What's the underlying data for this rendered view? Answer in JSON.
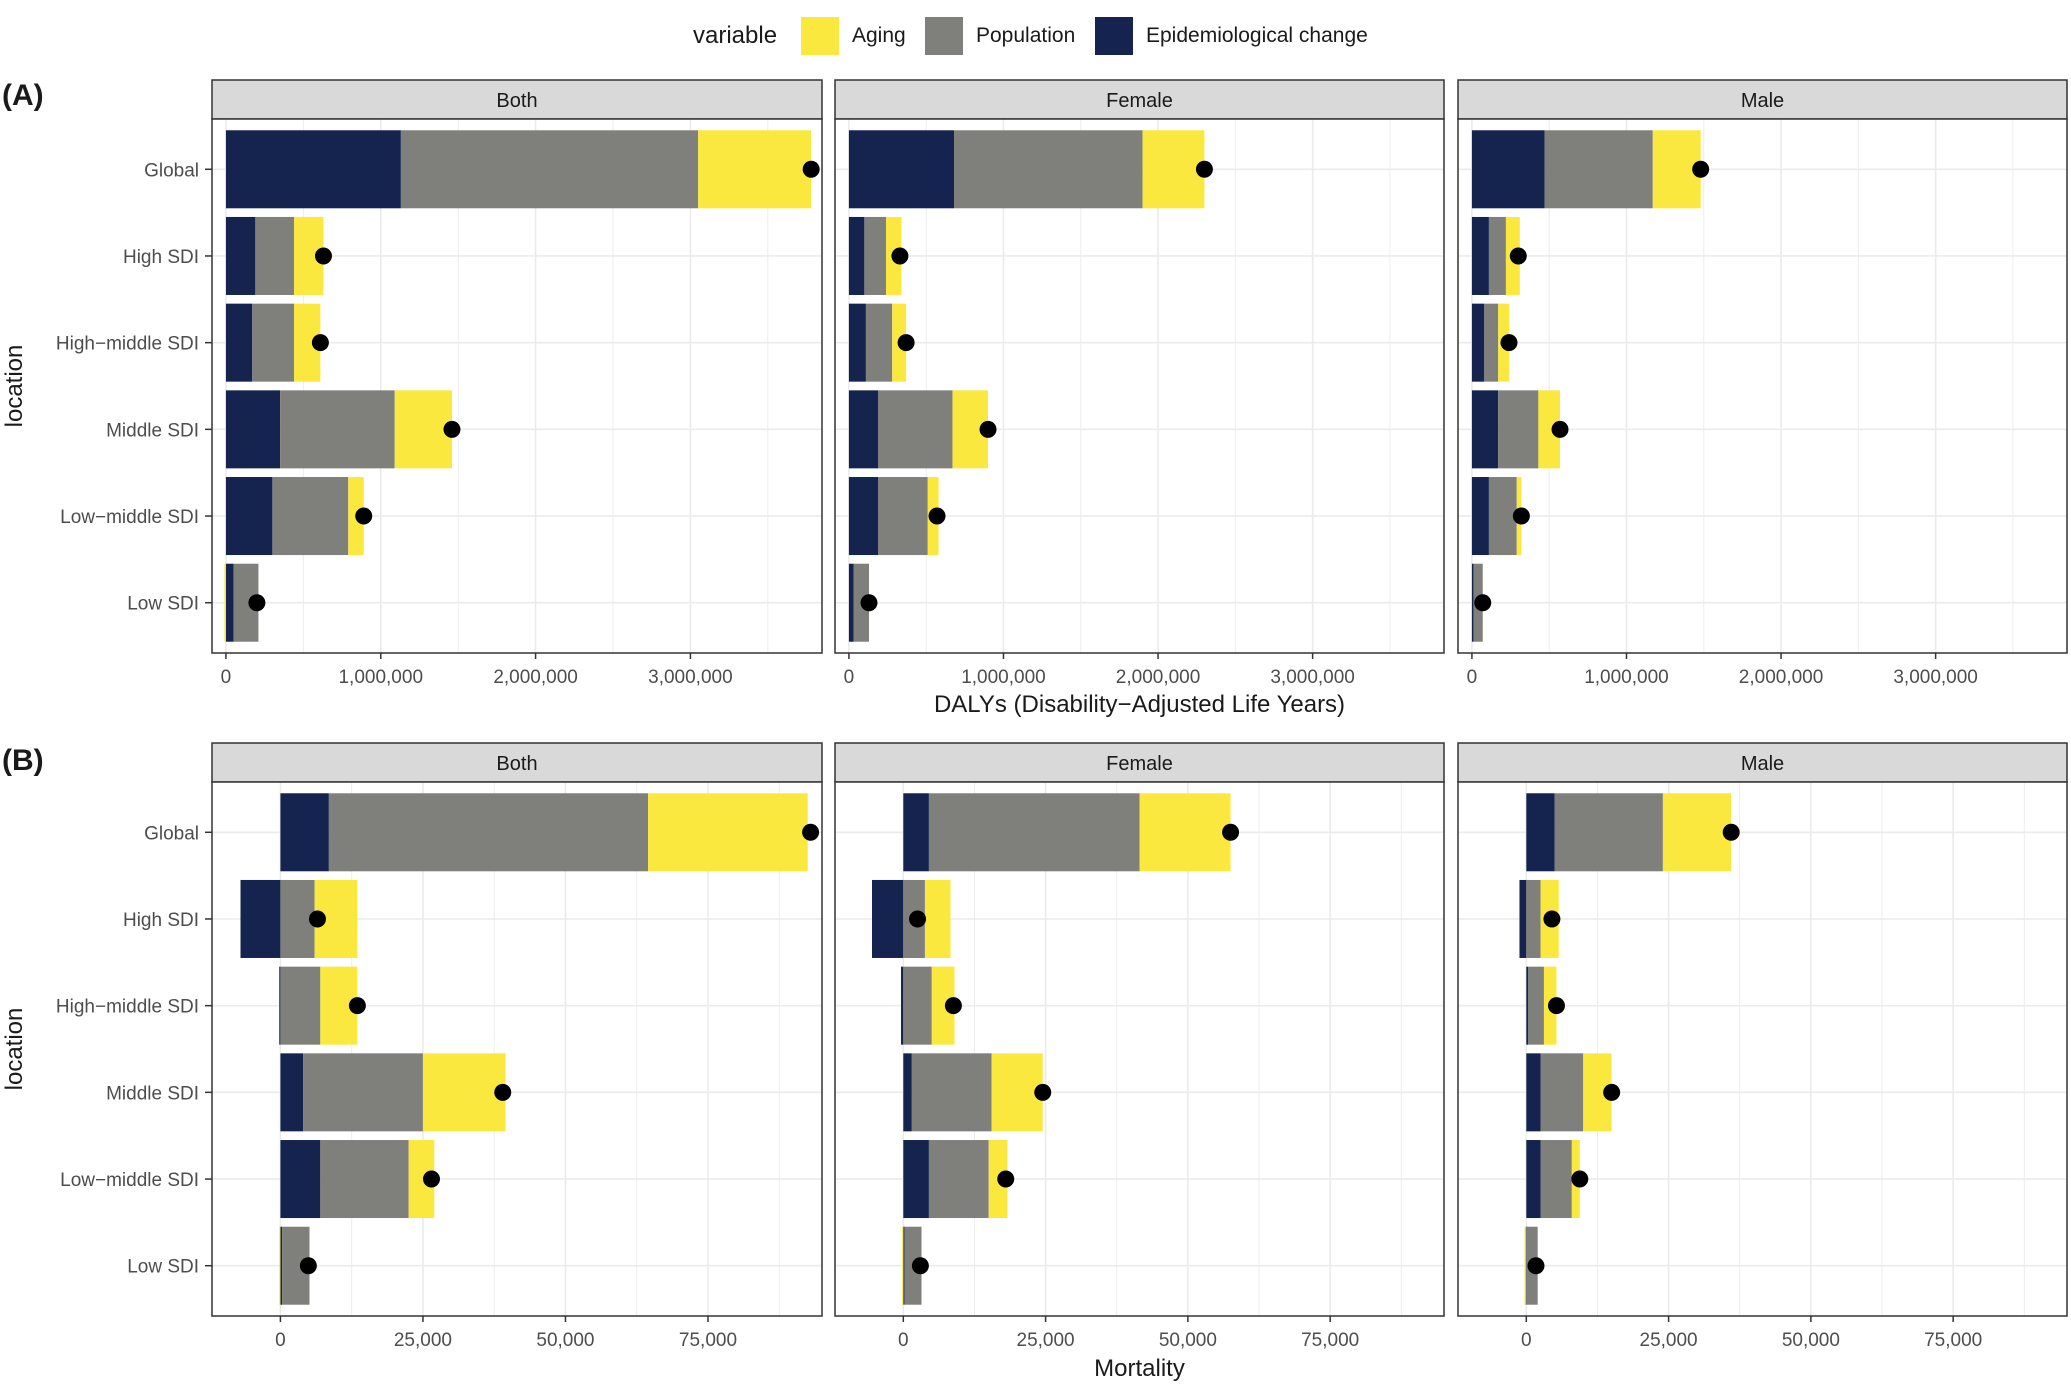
{
  "legend": {
    "title": "variable",
    "items": [
      {
        "label": "Aging",
        "color": "#FBE83F"
      },
      {
        "label": "Population",
        "color": "#7F7F7B"
      },
      {
        "label": "Epidemiological change",
        "color": "#15244F"
      }
    ]
  },
  "panels": [
    {
      "tag": "(A)",
      "xlabel": "DALYs (Disability−Adjusted Life Years)",
      "ylabel": "location"
    },
    {
      "tag": "(B)",
      "xlabel": "Mortality",
      "ylabel": "location"
    }
  ],
  "chart_data": [
    {
      "type": "bar",
      "stacked": true,
      "orientation": "horizontal",
      "title": "(A)",
      "xlabel": "DALYs (Disability−Adjusted Life Years)",
      "ylabel": "location",
      "facets": [
        "Both",
        "Female",
        "Male"
      ],
      "categories": [
        "Global",
        "High SDI",
        "High−middle SDI",
        "Middle SDI",
        "Low−middle SDI",
        "Low SDI"
      ],
      "xlim": [
        -90000,
        3850000
      ],
      "xticks": [
        0,
        1000000,
        2000000,
        3000000
      ],
      "xtick_labels": [
        "0",
        "1,000,000",
        "2,000,000",
        "3,000,000"
      ],
      "grid": true,
      "legend_position": "top",
      "facet_data": [
        {
          "facet": "Both",
          "series": [
            {
              "name": "Epidemiological change",
              "values": [
                1130000,
                190000,
                170000,
                350000,
                300000,
                50000
              ]
            },
            {
              "name": "Population",
              "values": [
                1920000,
                250000,
                270000,
                740000,
                490000,
                160000
              ]
            },
            {
              "name": "Aging",
              "values": [
                730000,
                190000,
                170000,
                370000,
                100000,
                -10000
              ]
            }
          ],
          "total": [
            3780000,
            630000,
            610000,
            1460000,
            890000,
            200000
          ]
        },
        {
          "facet": "Female",
          "series": [
            {
              "name": "Epidemiological change",
              "values": [
                680000,
                100000,
                110000,
                190000,
                190000,
                30000
              ]
            },
            {
              "name": "Population",
              "values": [
                1220000,
                140000,
                170000,
                480000,
                320000,
                100000
              ]
            },
            {
              "name": "Aging",
              "values": [
                400000,
                100000,
                90000,
                230000,
                70000,
                0
              ]
            }
          ],
          "total": [
            2300000,
            330000,
            370000,
            900000,
            570000,
            130000
          ]
        },
        {
          "facet": "Male",
          "series": [
            {
              "name": "Epidemiological change",
              "values": [
                470000,
                110000,
                80000,
                170000,
                110000,
                10000
              ]
            },
            {
              "name": "Population",
              "values": [
                700000,
                110000,
                90000,
                260000,
                180000,
                60000
              ]
            },
            {
              "name": "Aging",
              "values": [
                310000,
                90000,
                70000,
                140000,
                30000,
                0
              ]
            }
          ],
          "total": [
            1480000,
            300000,
            240000,
            570000,
            320000,
            70000
          ]
        }
      ]
    },
    {
      "type": "bar",
      "stacked": true,
      "orientation": "horizontal",
      "title": "(B)",
      "xlabel": "Mortality",
      "ylabel": "location",
      "facets": [
        "Both",
        "Female",
        "Male"
      ],
      "categories": [
        "Global",
        "High SDI",
        "High−middle SDI",
        "Middle SDI",
        "Low−middle SDI",
        "Low SDI"
      ],
      "xlim": [
        -12000,
        95000
      ],
      "xticks": [
        0,
        25000,
        50000,
        75000
      ],
      "xtick_labels": [
        "0",
        "25,000",
        "50,000",
        "75,000"
      ],
      "grid": true,
      "legend_position": "top",
      "facet_data": [
        {
          "facet": "Both",
          "series": [
            {
              "name": "Epidemiological change",
              "values": [
                8500,
                -7000,
                -200,
                4000,
                7000,
                300
              ]
            },
            {
              "name": "Population",
              "values": [
                56000,
                6000,
                7000,
                21000,
                15500,
                4800
              ]
            },
            {
              "name": "Aging",
              "values": [
                28000,
                7500,
                6500,
                14500,
                4500,
                -200
              ]
            }
          ],
          "total": [
            93000,
            6500,
            13500,
            39000,
            26500,
            4900
          ]
        },
        {
          "facet": "Female",
          "series": [
            {
              "name": "Epidemiological change",
              "values": [
                4500,
                -5500,
                -400,
                1500,
                4500,
                200
              ]
            },
            {
              "name": "Population",
              "values": [
                37000,
                3800,
                5000,
                14000,
                10500,
                3000
              ]
            },
            {
              "name": "Aging",
              "values": [
                16000,
                4500,
                4000,
                9000,
                3300,
                -200
              ]
            }
          ],
          "total": [
            57500,
            2500,
            8800,
            24500,
            18000,
            3000
          ]
        },
        {
          "facet": "Male",
          "series": [
            {
              "name": "Epidemiological change",
              "values": [
                5000,
                -1200,
                300,
                2500,
                2500,
                -100
              ]
            },
            {
              "name": "Population",
              "values": [
                19000,
                2500,
                2800,
                7500,
                5500,
                2000
              ]
            },
            {
              "name": "Aging",
              "values": [
                12000,
                3200,
                2200,
                5000,
                1400,
                -200
              ]
            }
          ],
          "total": [
            36000,
            4500,
            5300,
            15000,
            9400,
            1700
          ]
        }
      ]
    }
  ]
}
